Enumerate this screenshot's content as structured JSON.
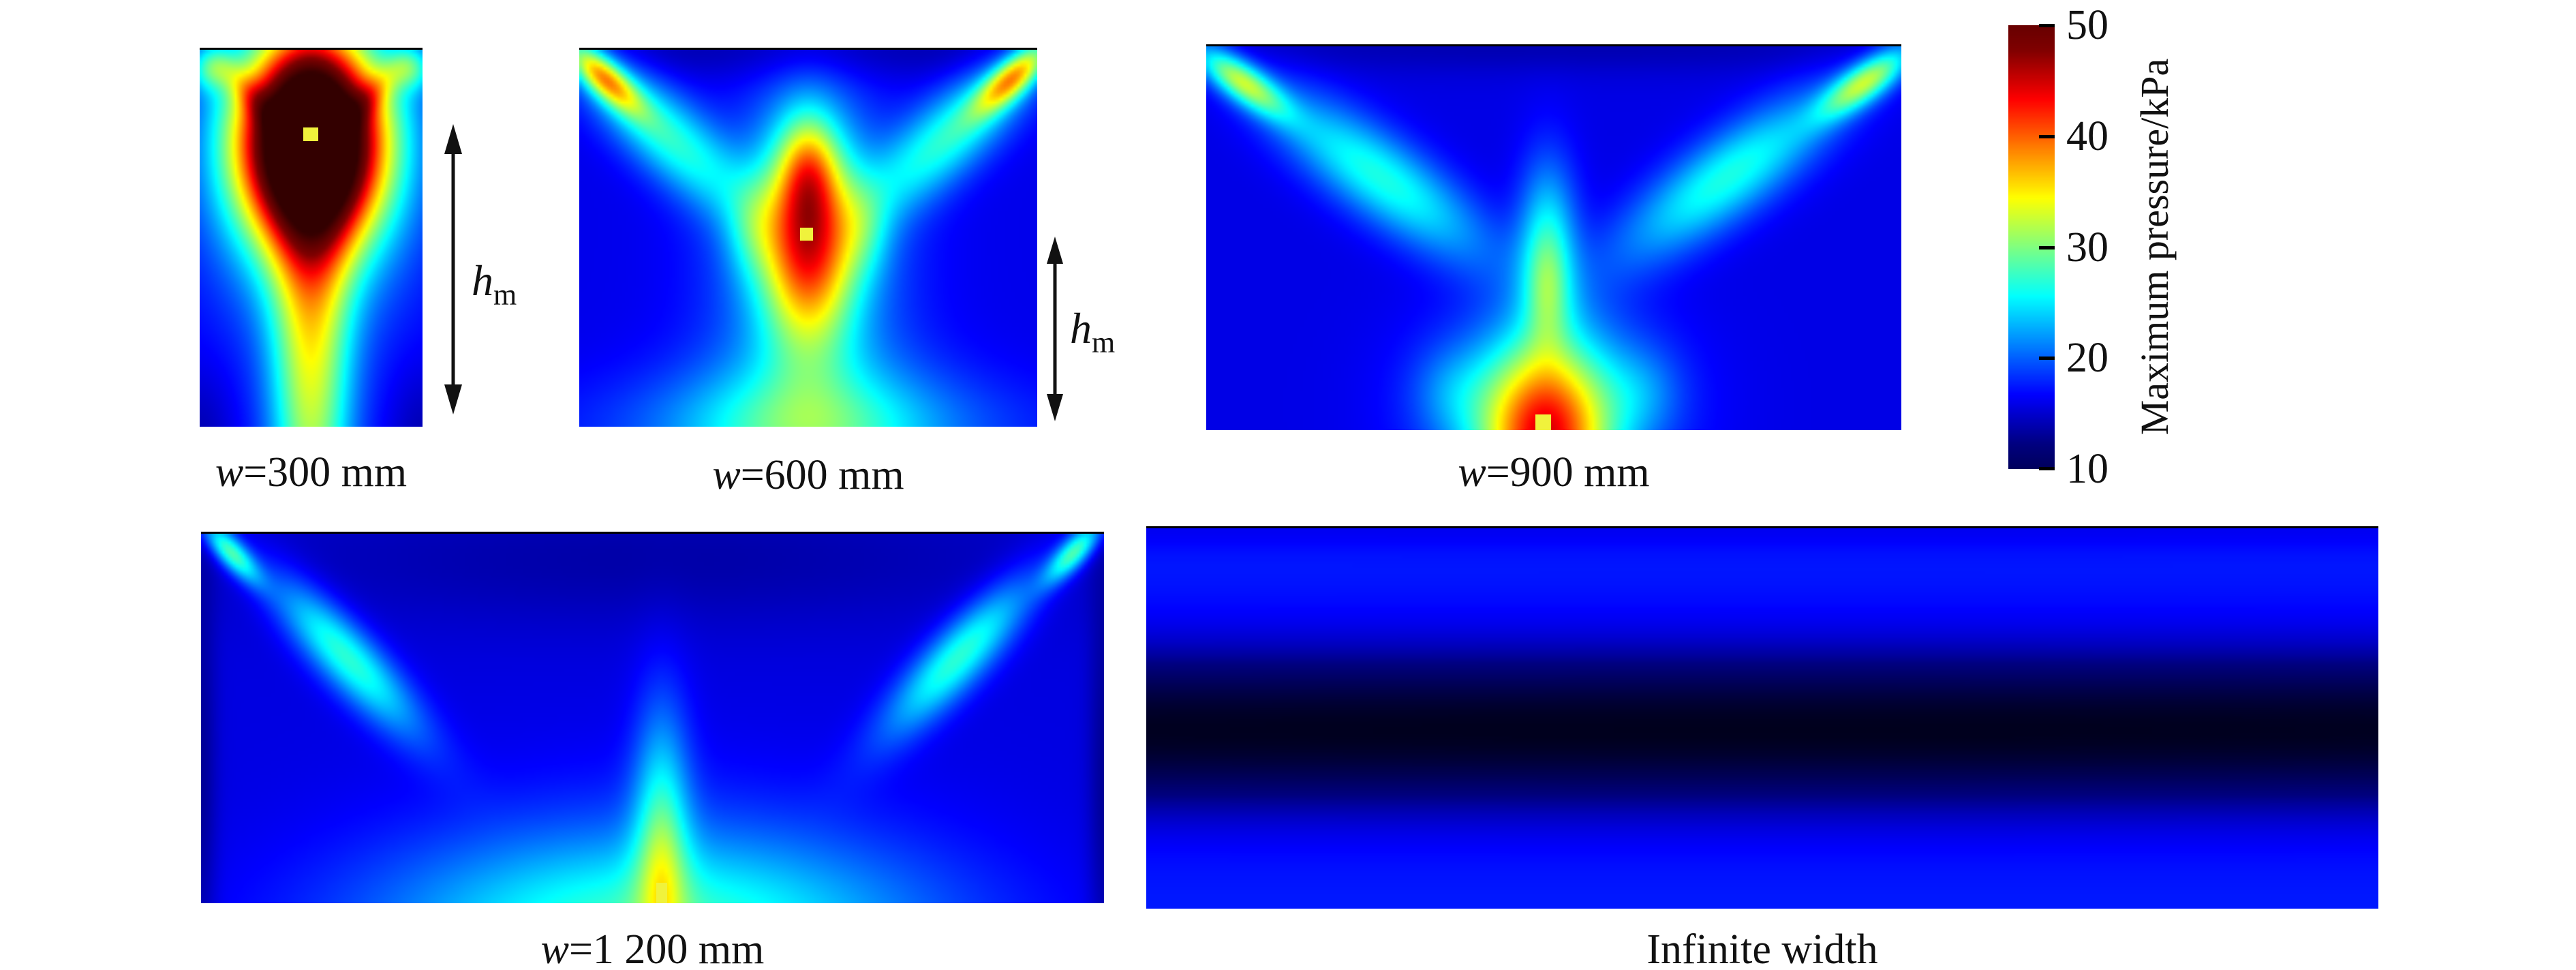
{
  "figure": {
    "background": "#ffffff"
  },
  "labels": {
    "hm_base": "h",
    "hm_sub": "m"
  },
  "colorbar": {
    "title": "Maximum pressure/kPa",
    "tick_labels": [
      "50",
      "40",
      "30",
      "20",
      "10"
    ],
    "min": 10,
    "max": 50,
    "colormap": "jet"
  },
  "chart_data": {
    "type": "heatmap",
    "value_label": "Maximum pressure/kPa",
    "value_range": [
      10,
      50
    ],
    "colormap": "jet",
    "marker_color": "#f0f23c",
    "legend_position": "right",
    "hm_annotation_panels": [
      "w=300 mm",
      "w=600 mm"
    ],
    "panels": [
      {
        "id": "w300",
        "label": "w=300 mm",
        "label_var": "w",
        "label_rest": "=300 mm",
        "base": 14.5,
        "marker": {
          "xf": 0.498,
          "yf": 0.225,
          "w": 22,
          "h": 20,
          "anchor": "center"
        },
        "sources": [
          {
            "x": 0.5,
            "y": 0.24,
            "sx": 0.132,
            "sy": 0.18,
            "a": 55
          },
          {
            "x": 0.5,
            "y": 0.8,
            "sx": 0.075,
            "sy": 0.5,
            "a": 18
          },
          {
            "x": 0.5,
            "y": 0.38,
            "sx": 0.18,
            "sy": 0.28,
            "a": 8
          },
          {
            "x": 0.245,
            "y": 0.13,
            "sx": 0.095,
            "sy": 0.028,
            "a": 6,
            "rot": 48
          },
          {
            "x": 0.755,
            "y": 0.13,
            "sx": 0.095,
            "sy": 0.028,
            "a": 6,
            "rot": -48
          },
          {
            "x": 0.05,
            "y": 0.05,
            "sx": 0.04,
            "sy": 0.04,
            "a": 9
          },
          {
            "x": 0.95,
            "y": 0.05,
            "sx": 0.04,
            "sy": 0.04,
            "a": 9
          },
          {
            "x": 0.0,
            "y": 1.02,
            "sx": 0.06,
            "sy": 0.12,
            "a": -2.5
          },
          {
            "x": 1.0,
            "y": 1.02,
            "sx": 0.06,
            "sy": 0.12,
            "a": -2.5
          }
        ]
      },
      {
        "id": "w600",
        "label": "w=600 mm",
        "label_var": "w",
        "label_rest": "=600 mm",
        "base": 14.2,
        "marker": {
          "xf": 0.496,
          "yf": 0.49,
          "w": 19,
          "h": 19,
          "anchor": "center"
        },
        "sources": [
          {
            "x": 0.5,
            "y": 0.0,
            "sx": 0.7,
            "sy": 0.06,
            "a": -2.5
          },
          {
            "x": 0.185,
            "y": 0.22,
            "sx": 0.2,
            "sy": 0.07,
            "a": 12,
            "rot": 43
          },
          {
            "x": 0.05,
            "y": 0.07,
            "sx": 0.09,
            "sy": 0.032,
            "a": 20,
            "rot": 43
          },
          {
            "x": 0.815,
            "y": 0.22,
            "sx": 0.2,
            "sy": 0.07,
            "a": 12,
            "rot": -43
          },
          {
            "x": 0.95,
            "y": 0.07,
            "sx": 0.09,
            "sy": 0.032,
            "a": 20,
            "rot": -43
          },
          {
            "x": 0.5,
            "y": 0.5,
            "sx": 0.085,
            "sy": 0.2,
            "a": 23
          },
          {
            "x": 0.5,
            "y": 0.32,
            "sx": 0.05,
            "sy": 0.1,
            "a": 9
          },
          {
            "x": 0.5,
            "y": 0.54,
            "sx": 0.17,
            "sy": 0.28,
            "a": 8.5
          },
          {
            "x": 0.376,
            "y": 0.48,
            "sx": 0.05,
            "sy": 0.09,
            "a": 4
          },
          {
            "x": 0.624,
            "y": 0.48,
            "sx": 0.05,
            "sy": 0.09,
            "a": 4
          },
          {
            "x": 0.5,
            "y": 1.02,
            "sx": 0.24,
            "sy": 0.15,
            "a": 10
          },
          {
            "x": 0.5,
            "y": 1.0,
            "sx": 0.45,
            "sy": 0.1,
            "a": 4
          }
        ]
      },
      {
        "id": "w900",
        "label": "w=900 mm",
        "label_var": "w",
        "label_rest": "=900 mm",
        "base": 14,
        "marker": {
          "xf": 0.485,
          "yf": 1.0,
          "w": 23,
          "h": 23,
          "anchor": "bottom"
        },
        "sources": [
          {
            "x": 0.5,
            "y": 0.0,
            "sx": 1.0,
            "sy": 0.05,
            "a": -2
          },
          {
            "x": 0.25,
            "y": 0.34,
            "sx": 0.24,
            "sy": 0.075,
            "a": 12,
            "rot": 36
          },
          {
            "x": 0.05,
            "y": 0.09,
            "sx": 0.1,
            "sy": 0.034,
            "a": 17,
            "rot": 36
          },
          {
            "x": 0.75,
            "y": 0.34,
            "sx": 0.24,
            "sy": 0.075,
            "a": 12,
            "rot": -36
          },
          {
            "x": 0.95,
            "y": 0.09,
            "sx": 0.1,
            "sy": 0.034,
            "a": 17,
            "rot": -36
          },
          {
            "x": 0.491,
            "y": 0.52,
            "sx": 0.055,
            "sy": 0.16,
            "a": 11
          },
          {
            "x": 0.491,
            "y": 0.64,
            "sx": 0.035,
            "sy": 0.1,
            "a": 4
          },
          {
            "x": 0.487,
            "y": 1.04,
            "sx": 0.115,
            "sy": 0.17,
            "a": 25
          },
          {
            "x": 0.491,
            "y": 0.93,
            "sx": 0.21,
            "sy": 0.17,
            "a": 9
          },
          {
            "x": 0.35,
            "y": 0.9,
            "sx": 0.07,
            "sy": 0.08,
            "a": 3
          },
          {
            "x": 0.63,
            "y": 0.9,
            "sx": 0.07,
            "sy": 0.08,
            "a": 3
          }
        ]
      },
      {
        "id": "w1200",
        "label": "w=1 200 mm",
        "label_var": "w",
        "label_rest": "=1 200 mm",
        "base": 13.8,
        "marker": {
          "xf": 0.51,
          "yf": 1.0,
          "w": 16,
          "h": 30,
          "anchor": "bottom"
        },
        "sources": [
          {
            "x": 0.5,
            "y": 0.07,
            "sx": 0.9,
            "sy": 0.13,
            "a": -2.2
          },
          {
            "x": 0.16,
            "y": 0.33,
            "sx": 0.2,
            "sy": 0.055,
            "a": 13,
            "rot": 47
          },
          {
            "x": 0.033,
            "y": 0.05,
            "sx": 0.075,
            "sy": 0.026,
            "a": 14,
            "rot": 47
          },
          {
            "x": 0.84,
            "y": 0.33,
            "sx": 0.2,
            "sy": 0.055,
            "a": 13,
            "rot": -47
          },
          {
            "x": 0.967,
            "y": 0.05,
            "sx": 0.075,
            "sy": 0.026,
            "a": 14,
            "rot": -47
          },
          {
            "x": 0.51,
            "y": 0.78,
            "sx": 0.055,
            "sy": 0.24,
            "a": 10
          },
          {
            "x": 0.51,
            "y": 0.96,
            "sx": 0.035,
            "sy": 0.14,
            "a": 3
          },
          {
            "x": 0.5,
            "y": 1.08,
            "sx": 0.5,
            "sy": 0.24,
            "a": 8
          },
          {
            "x": 0.5,
            "y": 1.05,
            "sx": 0.55,
            "sy": 0.15,
            "a": 6
          },
          {
            "x": 0.0,
            "y": 0.7,
            "sx": 0.03,
            "sy": 0.5,
            "a": -3
          },
          {
            "x": 1.0,
            "y": 0.7,
            "sx": 0.03,
            "sy": 0.5,
            "a": -3
          }
        ]
      },
      {
        "id": "infinite",
        "label": "Infinite width",
        "label_var": "",
        "label_rest": "Infinite width",
        "base": 16,
        "marker": null,
        "sources": [
          {
            "x": 0.5,
            "y": 0.53,
            "sx": 9,
            "sy": 0.14,
            "a": -13
          },
          {
            "x": 0.5,
            "y": 0.0,
            "sx": 9,
            "sy": 0.04,
            "a": -1.5
          }
        ]
      }
    ]
  }
}
